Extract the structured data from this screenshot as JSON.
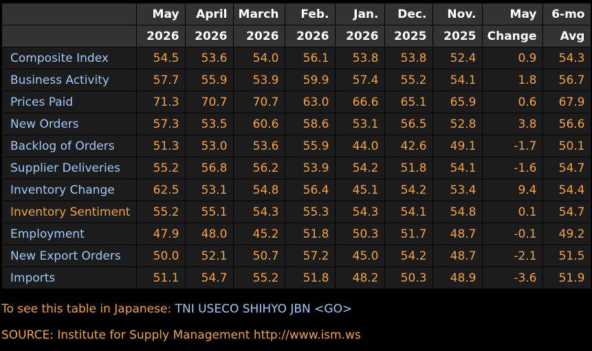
{
  "table": {
    "header": [
      [
        "May",
        "April",
        "March",
        "Feb.",
        "Jan.",
        "Dec.",
        "Nov.",
        "May",
        "6-mo"
      ],
      [
        "2026",
        "2026",
        "2026",
        "2026",
        "2026",
        "2025",
        "2025",
        "Change",
        "Avg"
      ]
    ],
    "rows": [
      {
        "label": "Composite Index",
        "values": [
          "54.5",
          "53.6",
          "54.0",
          "56.1",
          "53.8",
          "53.8",
          "52.4",
          "0.9",
          "54.3"
        ]
      },
      {
        "label": "Business Activity",
        "values": [
          "57.7",
          "55.9",
          "53.9",
          "59.9",
          "57.4",
          "55.2",
          "54.1",
          "1.8",
          "56.7"
        ]
      },
      {
        "label": "Prices Paid",
        "values": [
          "71.3",
          "70.7",
          "70.7",
          "63.0",
          "66.6",
          "65.1",
          "65.9",
          "0.6",
          "67.9"
        ]
      },
      {
        "label": "New Orders",
        "values": [
          "57.3",
          "53.5",
          "60.6",
          "58.6",
          "53.1",
          "56.5",
          "52.8",
          "3.8",
          "56.6"
        ]
      },
      {
        "label": "Backlog of Orders",
        "values": [
          "51.3",
          "53.0",
          "53.6",
          "55.9",
          "44.0",
          "42.6",
          "49.1",
          "-1.7",
          "50.1"
        ]
      },
      {
        "label": "Supplier Deliveries",
        "values": [
          "55.2",
          "56.8",
          "56.2",
          "53.9",
          "54.2",
          "51.8",
          "54.1",
          "-1.6",
          "54.7"
        ]
      },
      {
        "label": "Inventory Change",
        "values": [
          "62.5",
          "53.1",
          "54.8",
          "56.4",
          "45.1",
          "54.2",
          "53.4",
          "9.4",
          "54.4"
        ]
      },
      {
        "label": "Inventory Sentiment",
        "values": [
          "55.2",
          "55.1",
          "54.3",
          "55.3",
          "54.3",
          "54.1",
          "54.8",
          "0.1",
          "54.7"
        ],
        "label_color": "#f4a43a"
      },
      {
        "label": "Employment",
        "values": [
          "47.9",
          "48.0",
          "45.2",
          "51.8",
          "50.3",
          "51.7",
          "48.7",
          "-0.1",
          "49.2"
        ]
      },
      {
        "label": "New Export Orders",
        "values": [
          "50.0",
          "52.1",
          "50.7",
          "57.2",
          "45.0",
          "54.2",
          "48.7",
          "-2.1",
          "51.5"
        ]
      },
      {
        "label": "Imports",
        "values": [
          "51.1",
          "54.7",
          "55.2",
          "51.8",
          "48.2",
          "50.3",
          "48.9",
          "-3.6",
          "51.9"
        ]
      }
    ]
  },
  "footer": {
    "japanese_prefix": "To see this table in Japanese:",
    "japanese_command": "TNI USECO SHIHYO JBN <GO>",
    "source": "SOURCE: Institute for Supply Management http://www.ism.ws"
  }
}
